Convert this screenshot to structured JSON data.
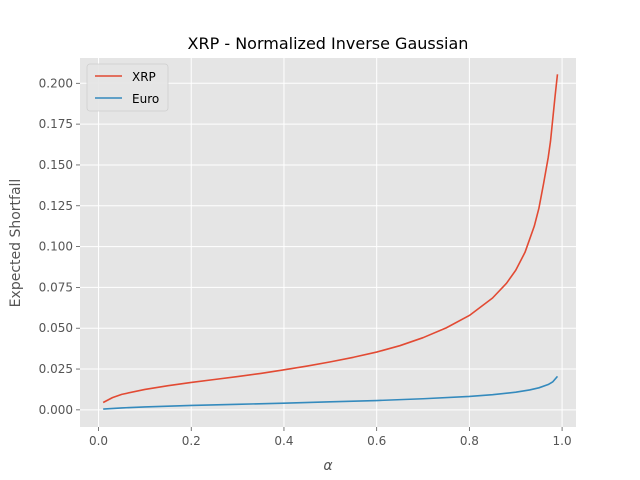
{
  "chart_data": {
    "type": "line",
    "title": "XRP - Normalized Inverse Gaussian",
    "xlabel": "α",
    "ylabel": "Expected Shortfall",
    "xlim": [
      -0.04,
      1.03
    ],
    "ylim": [
      -0.0105,
      0.2155
    ],
    "xticks": [
      0.0,
      0.2,
      0.4,
      0.6,
      0.8,
      1.0
    ],
    "xtick_labels": [
      "0.0",
      "0.2",
      "0.4",
      "0.6",
      "0.8",
      "1.0"
    ],
    "yticks": [
      0.0,
      0.025,
      0.05,
      0.075,
      0.1,
      0.125,
      0.15,
      0.175,
      0.2
    ],
    "ytick_labels": [
      "0.000",
      "0.025",
      "0.050",
      "0.075",
      "0.100",
      "0.125",
      "0.150",
      "0.175",
      "0.200"
    ],
    "grid": true,
    "legend_position": "top-left",
    "series": [
      {
        "name": "XRP",
        "color": "#E24A33",
        "x": [
          0.01,
          0.03,
          0.05,
          0.1,
          0.15,
          0.2,
          0.25,
          0.3,
          0.35,
          0.4,
          0.45,
          0.5,
          0.55,
          0.6,
          0.65,
          0.7,
          0.75,
          0.8,
          0.85,
          0.88,
          0.9,
          0.92,
          0.94,
          0.95,
          0.96,
          0.97,
          0.975,
          0.98,
          0.985,
          0.99
        ],
        "y": [
          0.0045,
          0.0075,
          0.0095,
          0.0125,
          0.0148,
          0.0168,
          0.0186,
          0.0204,
          0.0223,
          0.0245,
          0.0268,
          0.0294,
          0.0322,
          0.0354,
          0.0393,
          0.0442,
          0.0502,
          0.0578,
          0.0685,
          0.0775,
          0.0855,
          0.0965,
          0.1125,
          0.1235,
          0.1385,
          0.1545,
          0.1645,
          0.1785,
          0.1925,
          0.2055
        ]
      },
      {
        "name": "Euro",
        "color": "#348ABD",
        "x": [
          0.01,
          0.05,
          0.1,
          0.2,
          0.3,
          0.4,
          0.5,
          0.6,
          0.7,
          0.8,
          0.85,
          0.9,
          0.93,
          0.95,
          0.97,
          0.98,
          0.99
        ],
        "y": [
          0.0005,
          0.0012,
          0.0018,
          0.0027,
          0.0034,
          0.0041,
          0.0049,
          0.0057,
          0.0068,
          0.0082,
          0.0093,
          0.0108,
          0.0122,
          0.0135,
          0.0155,
          0.0172,
          0.0205
        ]
      }
    ]
  }
}
